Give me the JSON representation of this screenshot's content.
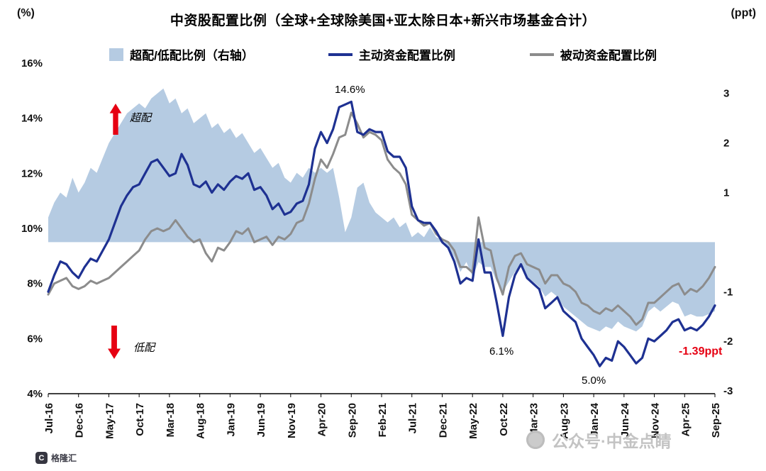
{
  "header": {
    "left_axis_unit": "(%)",
    "title": "中资股配置比例（全球+全球除美国+亚太除日本+新兴市场基金合计）",
    "right_axis_unit": "(ppt)"
  },
  "legend": {
    "items": [
      {
        "label": "超配/低配比例（右轴）",
        "marker": "area-square",
        "color": "#b5cbe2"
      },
      {
        "label": "主动资金配置比例",
        "marker": "line",
        "color": "#1e3192"
      },
      {
        "label": "被动资金配置比例",
        "marker": "line",
        "color": "#8c8c8c"
      }
    ]
  },
  "annotations": {
    "overweight_arrow_label": "超配",
    "underweight_arrow_label": "低配",
    "arrow_color": "#e60012",
    "latest_color": "#e60012"
  },
  "watermark": {
    "wechat": "公众号·中金点睛",
    "logo_badge": "C",
    "logo_text": "格隆汇"
  },
  "chart_data": {
    "type": "combo",
    "title": "中资股配置比例（全球+全球除美国+亚太除日本+新兴市场基金合计）",
    "n_points": 111,
    "x_tick_step": 5,
    "x_ticks": [
      "Jul-16",
      "Dec-16",
      "May-17",
      "Oct-17",
      "Mar-18",
      "Aug-18",
      "Jan-19",
      "Jun-19",
      "Nov-19",
      "Apr-20",
      "Sep-20",
      "Feb-21",
      "Jul-21",
      "Dec-21",
      "May-22",
      "Oct-22",
      "Mar-23",
      "Aug-23",
      "Jan-24",
      "Jun-24",
      "Nov-24",
      "Apr-25",
      "Sep-25"
    ],
    "left_axis": {
      "label": "(%)",
      "min": 4,
      "max": 16,
      "ticks": [
        "16%",
        "14%",
        "12%",
        "10%",
        "8%",
        "6%",
        "4%"
      ]
    },
    "right_axis": {
      "label": "(ppt)",
      "ticks": [
        "3",
        "2",
        "1",
        "-1",
        "-2",
        "-3"
      ],
      "zero_at_left_percent": 9.5,
      "left_percent_per_ppt": 1.8
    },
    "series": [
      {
        "name": "超配/低配比例（右轴）",
        "type": "area",
        "axis": "right",
        "color": "#b5cbe2",
        "values": [
          0.5,
          0.8,
          1.0,
          0.9,
          1.3,
          1.0,
          1.2,
          1.5,
          1.4,
          1.7,
          2.0,
          2.2,
          2.4,
          2.6,
          2.7,
          2.8,
          2.7,
          2.9,
          3.0,
          3.1,
          2.8,
          2.9,
          2.6,
          2.7,
          2.4,
          2.5,
          2.6,
          2.3,
          2.4,
          2.2,
          2.3,
          2.1,
          2.2,
          2.0,
          1.8,
          1.9,
          1.7,
          1.5,
          1.6,
          1.3,
          1.2,
          1.4,
          1.3,
          1.5,
          1.4,
          1.5,
          1.4,
          1.5,
          0.9,
          0.2,
          0.5,
          1.1,
          1.2,
          0.8,
          0.6,
          0.5,
          0.4,
          0.5,
          0.3,
          0.4,
          0.1,
          0.2,
          0.1,
          0.3,
          0.1,
          0.05,
          -0.1,
          -0.3,
          -0.6,
          -0.4,
          -0.7,
          -0.4,
          -0.5,
          -0.5,
          -0.8,
          -1.0,
          -0.8,
          -0.6,
          -0.5,
          -0.7,
          -0.8,
          -0.9,
          -1.1,
          -1.0,
          -1.1,
          -1.3,
          -1.4,
          -1.5,
          -1.6,
          -1.7,
          -1.75,
          -1.8,
          -1.7,
          -1.75,
          -1.6,
          -1.7,
          -1.75,
          -1.8,
          -1.7,
          -1.4,
          -1.3,
          -1.4,
          -1.3,
          -1.2,
          -1.25,
          -1.5,
          -1.45,
          -1.5,
          -1.5,
          -1.45,
          -1.39
        ]
      },
      {
        "name": "主动资金配置比例",
        "type": "line",
        "axis": "left",
        "color": "#1e3192",
        "values": [
          7.7,
          8.3,
          8.8,
          8.7,
          8.4,
          8.2,
          8.6,
          8.9,
          8.8,
          9.2,
          9.6,
          10.2,
          10.8,
          11.2,
          11.5,
          11.6,
          12.0,
          12.4,
          12.5,
          12.2,
          11.9,
          12.0,
          12.7,
          12.3,
          11.6,
          11.5,
          11.7,
          11.3,
          11.6,
          11.4,
          11.7,
          11.9,
          11.8,
          12.0,
          11.4,
          11.5,
          11.2,
          10.7,
          10.9,
          10.5,
          10.6,
          10.9,
          11.0,
          11.6,
          12.9,
          13.5,
          13.1,
          13.6,
          14.4,
          14.5,
          14.6,
          13.5,
          13.4,
          13.6,
          13.5,
          13.5,
          12.8,
          12.6,
          12.6,
          12.2,
          10.8,
          10.3,
          10.2,
          10.2,
          9.9,
          9.5,
          9.3,
          8.8,
          8.0,
          8.2,
          8.1,
          9.6,
          8.4,
          8.4,
          7.3,
          6.1,
          7.5,
          8.3,
          8.7,
          8.2,
          8.0,
          7.8,
          7.1,
          7.3,
          7.5,
          7.0,
          6.8,
          6.6,
          6.0,
          5.7,
          5.4,
          5.0,
          5.3,
          5.2,
          5.9,
          5.7,
          5.4,
          5.1,
          5.3,
          6.0,
          5.9,
          6.1,
          6.3,
          6.6,
          6.7,
          6.3,
          6.4,
          6.3,
          6.5,
          6.8,
          7.2
        ]
      },
      {
        "name": "被动资金配置比例",
        "type": "line",
        "axis": "left",
        "color": "#8c8c8c",
        "values": [
          7.6,
          8.0,
          8.1,
          8.2,
          7.9,
          7.8,
          7.9,
          8.1,
          8.0,
          8.1,
          8.2,
          8.4,
          8.6,
          8.8,
          9.0,
          9.2,
          9.6,
          9.9,
          10.0,
          9.9,
          10.0,
          10.3,
          10.0,
          9.7,
          9.5,
          9.6,
          9.1,
          8.8,
          9.3,
          9.2,
          9.5,
          9.9,
          9.8,
          10.0,
          9.5,
          9.6,
          9.7,
          9.4,
          9.7,
          9.6,
          9.8,
          10.2,
          10.3,
          10.9,
          11.8,
          12.5,
          12.2,
          12.7,
          13.3,
          13.4,
          14.2,
          13.8,
          13.3,
          13.5,
          13.4,
          13.2,
          12.5,
          12.2,
          12.0,
          11.6,
          10.5,
          10.3,
          10.1,
          10.2,
          9.8,
          9.6,
          9.5,
          9.2,
          8.6,
          8.6,
          8.4,
          10.4,
          9.3,
          9.2,
          8.2,
          7.6,
          8.6,
          9.0,
          9.1,
          8.7,
          8.6,
          8.5,
          8.0,
          8.3,
          8.3,
          8.0,
          7.9,
          7.7,
          7.3,
          7.2,
          7.0,
          6.9,
          7.1,
          7.0,
          7.2,
          7.0,
          6.8,
          6.5,
          6.7,
          7.3,
          7.3,
          7.5,
          7.7,
          7.9,
          8.0,
          7.6,
          7.8,
          7.7,
          7.9,
          8.2,
          8.6
        ]
      }
    ],
    "annotations": [
      {
        "text": "14.6%",
        "series": "主动资金配置比例",
        "x_tick": "Sep-20",
        "value": 14.6
      },
      {
        "text": "6.1%",
        "series": "主动资金配置比例",
        "x_tick": "Oct-22",
        "value": 6.1
      },
      {
        "text": "5.0%",
        "series": "主动资金配置比例",
        "x_tick": "Jan-24",
        "value": 5.0
      },
      {
        "text": "-1.39ppt",
        "series": "超配/低配比例（右轴）",
        "x_tick": "Sep-25",
        "value": -1.39
      }
    ]
  }
}
